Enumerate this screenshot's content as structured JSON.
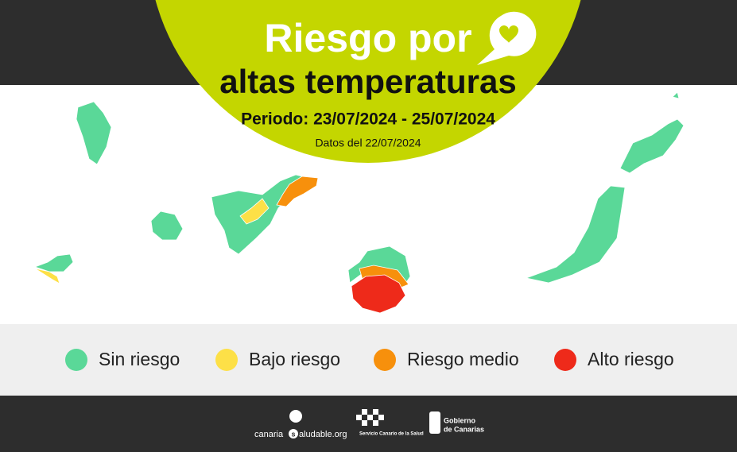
{
  "header": {
    "title_line1": "Riesgo por",
    "title_line2": "altas temperaturas",
    "period": "Periodo: 23/07/2024 - 25/07/2024",
    "data_date": "Datos del 22/07/2024"
  },
  "legend": [
    {
      "label": "Sin riesgo",
      "color": "#5ad898"
    },
    {
      "label": "Bajo riesgo",
      "color": "#fde047"
    },
    {
      "label": "Riesgo medio",
      "color": "#f7900c"
    },
    {
      "label": "Alto riesgo",
      "color": "#ee2a1a"
    }
  ],
  "footer": {
    "site_part1": "canaria",
    "site_mark": "s",
    "site_part2": "aludable.org",
    "scs": "Servicio Canario de la Salud",
    "gov_line1": "Gobierno",
    "gov_line2": "de Canarias"
  }
}
